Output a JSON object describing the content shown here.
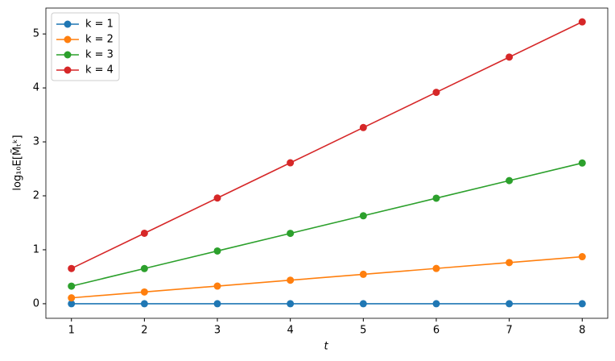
{
  "chart_data": {
    "type": "line",
    "x_label": "t",
    "y_label": "log₁₀E[M̃ₜᵏ]",
    "x": [
      1,
      2,
      3,
      4,
      5,
      6,
      7,
      8
    ],
    "series": [
      {
        "name": "k = 1",
        "color": "#1f77b4",
        "values": [
          0,
          0,
          0,
          0,
          0,
          0,
          0,
          0
        ]
      },
      {
        "name": "k = 2",
        "color": "#ff7f0e",
        "values": [
          0.109,
          0.218,
          0.327,
          0.436,
          0.545,
          0.654,
          0.763,
          0.872
        ]
      },
      {
        "name": "k = 3",
        "color": "#2ca02c",
        "values": [
          0.326,
          0.652,
          0.978,
          1.304,
          1.63,
          1.956,
          2.282,
          2.608
        ]
      },
      {
        "name": "k = 4",
        "color": "#d62728",
        "values": [
          0.653,
          1.306,
          1.959,
          2.612,
          3.265,
          3.918,
          4.571,
          5.224
        ]
      }
    ],
    "xlim": [
      0.65,
      8.35
    ],
    "ylim": [
      -0.27,
      5.48
    ],
    "xticks": [
      1,
      2,
      3,
      4,
      5,
      6,
      7,
      8
    ],
    "yticks": [
      0,
      1,
      2,
      3,
      4,
      5
    ],
    "legend": "upper-left",
    "markers": true
  }
}
